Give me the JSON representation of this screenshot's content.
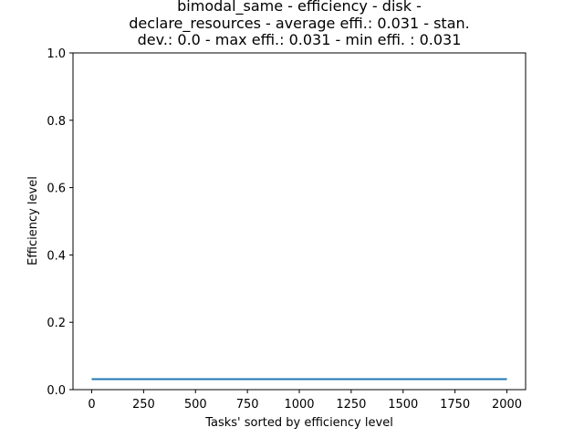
{
  "chart_data": {
    "type": "line",
    "title_lines": [
      "bimodal_same - efficiency - disk -",
      "declare_resources - average effi.: 0.031 - stan.",
      "dev.: 0.0 - max effi.: 0.031 - min effi. : 0.031"
    ],
    "xlabel": "Tasks' sorted by efficiency level",
    "ylabel": "Efficiency level",
    "xlim": [
      -90,
      2090
    ],
    "ylim": [
      0.0,
      1.0
    ],
    "x_ticks": [
      0,
      250,
      500,
      750,
      1000,
      1250,
      1500,
      1750,
      2000
    ],
    "y_ticks": [
      0.0,
      0.2,
      0.4,
      0.6,
      0.8,
      1.0
    ],
    "y_tick_labels": [
      "0.0",
      "0.2",
      "0.4",
      "0.6",
      "0.8",
      "1.0"
    ],
    "grid": false,
    "series": [
      {
        "color": "#1f77b4",
        "x": [
          0,
          2000
        ],
        "y": [
          0.031,
          0.031
        ]
      }
    ]
  }
}
